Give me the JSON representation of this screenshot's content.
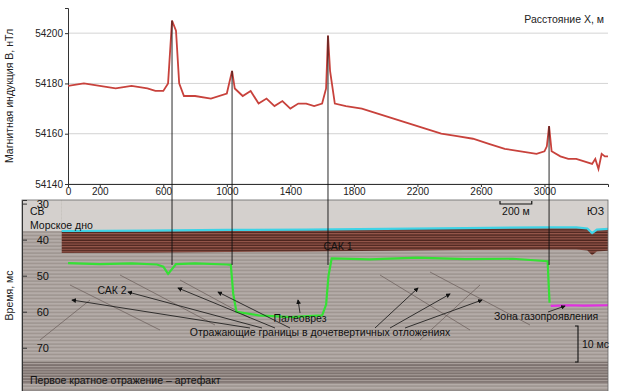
{
  "chart_data": [
    {
      "type": "line",
      "y_label": "Магнитная индукция B, нТл",
      "x_label": "Расстояние X, м",
      "x": [
        0,
        100,
        200,
        300,
        400,
        500,
        550,
        600,
        630,
        655,
        680,
        700,
        730,
        800,
        900,
        1000,
        1033,
        1050,
        1100,
        1150,
        1200,
        1250,
        1300,
        1350,
        1400,
        1450,
        1500,
        1550,
        1600,
        1625,
        1637,
        1650,
        1680,
        1750,
        1850,
        1950,
        2050,
        2150,
        2250,
        2350,
        2450,
        2550,
        2650,
        2750,
        2850,
        2950,
        3000,
        3015,
        3029,
        3045,
        3100,
        3150,
        3200,
        3250,
        3300,
        3320,
        3340,
        3360,
        3380,
        3400
      ],
      "series": [
        {
          "color": "#c8423c",
          "values": [
            54179,
            54180,
            54179,
            54178,
            54179,
            54178,
            54177,
            54177,
            54180,
            54205,
            54201,
            54180,
            54175,
            54175,
            54174,
            54176,
            54185,
            54178,
            54175,
            54177,
            54172,
            54174,
            54171,
            54173,
            54170,
            54172,
            54172,
            54171,
            54172,
            54178,
            54199,
            54185,
            54172,
            54171,
            54170,
            54168,
            54166,
            54164,
            54162,
            54160,
            54159,
            54158,
            54156,
            54154,
            54153,
            54152,
            54153,
            54155,
            54163,
            54153,
            54151,
            54150,
            54150,
            54149,
            54148,
            54150,
            54146,
            54152,
            54151,
            54151
          ]
        }
      ],
      "xlim": [
        0,
        3400
      ],
      "ylim": [
        54140,
        54210
      ],
      "xticks": [
        0,
        200,
        600,
        1000,
        1400,
        1800,
        2200,
        2600,
        3000
      ],
      "yticks": [
        54140,
        54160,
        54180,
        54200
      ],
      "grid": true,
      "anomaly_x": [
        655,
        1033,
        1637,
        3029
      ]
    },
    {
      "type": "line",
      "y_label": "Время, мс",
      "series": [
        {
          "color": "#3fd3e6",
          "x": [
            -40,
            500,
            1000,
            1500,
            2000,
            2500,
            3000,
            3200,
            3270,
            3300,
            3330,
            3400
          ],
          "values": [
            37.6,
            37.5,
            37.3,
            37.2,
            37.0,
            36.8,
            36.6,
            36.6,
            36.9,
            38.2,
            37.2,
            37.0
          ]
        },
        {
          "color": "#35e035",
          "x": [
            0,
            200,
            400,
            560,
            600,
            630,
            680,
            800,
            1000,
            1025,
            1040,
            1060,
            1200,
            1400,
            1600,
            1625,
            1640,
            1660,
            1900,
            2200,
            2500,
            2800,
            3020,
            3026,
            3032
          ],
          "values": [
            46.5,
            46.8,
            46.6,
            46.9,
            47.5,
            49.5,
            46.8,
            46.6,
            46.9,
            47.0,
            55.0,
            60.0,
            61.0,
            61.5,
            61.0,
            58.0,
            50.0,
            45.2,
            45.5,
            45.0,
            45.4,
            45.3,
            46.0,
            52.0,
            57.5
          ]
        },
        {
          "color": "#e22ee2",
          "x": [
            3040,
            3150,
            3250,
            3400
          ],
          "values": [
            58.4,
            58.2,
            58.3,
            58.2
          ]
        }
      ],
      "xlim": [
        -290,
        3400
      ],
      "ylim": [
        82,
        29
      ],
      "yticks": [
        30,
        40,
        50,
        60,
        70
      ],
      "tick_labels": "y",
      "annotations": [
        "СВ",
        "ЮЗ",
        "Морское дно",
        "САК 1",
        "САК 2",
        "Палеоврез",
        "Отражающие границы в дочетвертичных отложениях",
        "Зона газопроявления",
        "Первое кратное отражение – артефакт"
      ],
      "scale_bar": "200 м",
      "time_bar": "10 мс"
    }
  ]
}
